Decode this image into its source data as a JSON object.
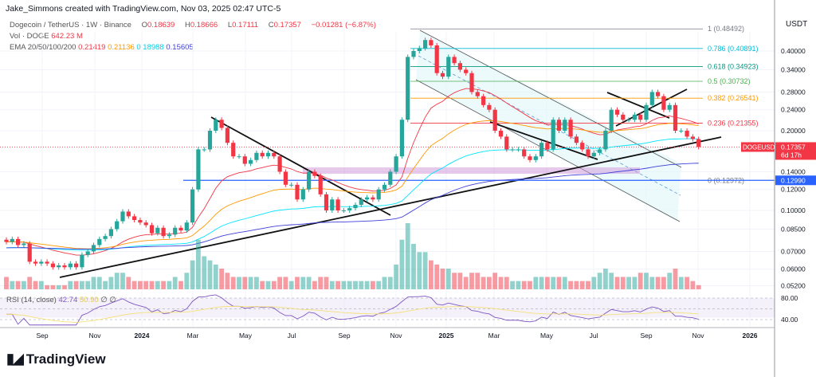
{
  "credit": "Jake_Simmons created with TradingView.com, Nov 03, 2025 02:47 UTC-5",
  "legend": {
    "symbol": "Dogecoin / TetherUS · 1W · Binance",
    "o_label": "O",
    "o": "0.18639",
    "h_label": "H",
    "h": "0.18666",
    "l_label": "L",
    "l": "0.17111",
    "c_label": "C",
    "c": "0.17357",
    "change": "−0.01281 (−6.87%)",
    "vol_label": "Vol · DOGE",
    "vol": "642.23 M",
    "ema_label": "EMA 20/50/100/200",
    "ema": [
      "0.21419",
      "0.21136",
      "0.18988",
      "0.15605"
    ]
  },
  "rsi": {
    "label": "RSI (14, close)",
    "value": "42.74",
    "ma": "50.90",
    "x1": "∅",
    "x2": "∅",
    "ticks": [
      "80.00",
      "40.00"
    ]
  },
  "colors": {
    "up": "#26a69a",
    "down": "#f23645",
    "ema20": "#f23645",
    "ema50": "#ff9800",
    "ema100": "#00e5ff",
    "ema200": "#3f3fd9",
    "rsi": "#7e57c2",
    "rsi_ma": "#f5e17a"
  },
  "logo": "TradingView",
  "chart_data": {
    "type": "candlestick",
    "scale": "log",
    "axis_title": "USDT",
    "y_ticks": [
      "0.40000",
      "0.34000",
      "0.28000",
      "0.24000",
      "0.20000",
      "0.14000",
      "0.12000",
      "0.10000",
      "0.08500",
      "0.07000",
      "0.06000",
      "0.05200"
    ],
    "x_ticks": [
      "Sep",
      "Nov",
      "2024",
      "Mar",
      "May",
      "Jul",
      "Sep",
      "Nov",
      "2025",
      "Mar",
      "May",
      "Jul",
      "Sep",
      "Nov",
      "2026"
    ],
    "last_price": {
      "symbol": "DOGEUSDT",
      "value": "0.17357",
      "countdown": "6d 17h"
    },
    "marked_price": "0.12990",
    "close": [
      0.076,
      0.078,
      0.074,
      0.075,
      0.064,
      0.063,
      0.064,
      0.063,
      0.061,
      0.062,
      0.061,
      0.063,
      0.061,
      0.068,
      0.07,
      0.074,
      0.078,
      0.08,
      0.085,
      0.091,
      0.099,
      0.095,
      0.092,
      0.09,
      0.088,
      0.082,
      0.086,
      0.08,
      0.081,
      0.086,
      0.084,
      0.09,
      0.12,
      0.17,
      0.17,
      0.2,
      0.22,
      0.205,
      0.18,
      0.16,
      0.16,
      0.15,
      0.155,
      0.165,
      0.16,
      0.165,
      0.16,
      0.14,
      0.125,
      0.125,
      0.11,
      0.12,
      0.14,
      0.135,
      0.115,
      0.1,
      0.11,
      0.1,
      0.1,
      0.102,
      0.105,
      0.11,
      0.112,
      0.11,
      0.12,
      0.125,
      0.14,
      0.16,
      0.22,
      0.38,
      0.4,
      0.41,
      0.44,
      0.42,
      0.33,
      0.32,
      0.38,
      0.36,
      0.34,
      0.33,
      0.28,
      0.27,
      0.25,
      0.24,
      0.2,
      0.19,
      0.17,
      0.17,
      0.17,
      0.16,
      0.155,
      0.16,
      0.18,
      0.17,
      0.22,
      0.2,
      0.22,
      0.19,
      0.18,
      0.17,
      0.16,
      0.165,
      0.17,
      0.2,
      0.24,
      0.23,
      0.22,
      0.22,
      0.23,
      0.22,
      0.25,
      0.28,
      0.27,
      0.24,
      0.25,
      0.2,
      0.2,
      0.19,
      0.186,
      0.17357
    ],
    "volume": [
      3,
      2,
      2,
      2,
      3,
      2,
      2,
      1,
      1,
      1,
      1,
      2,
      2,
      2,
      2,
      3,
      3,
      2,
      3,
      4,
      4,
      3,
      2,
      2,
      2,
      2,
      2,
      2,
      2,
      3,
      2,
      4,
      7,
      12,
      8,
      7,
      6,
      5,
      4,
      3,
      3,
      3,
      3,
      3,
      2,
      2,
      2,
      3,
      3,
      2,
      3,
      3,
      3,
      2,
      3,
      3,
      2,
      2,
      2,
      2,
      2,
      2,
      2,
      2,
      2,
      3,
      3,
      6,
      12,
      16,
      11,
      9,
      9,
      7,
      6,
      5,
      5,
      4,
      4,
      3,
      4,
      4,
      3,
      3,
      4,
      3,
      3,
      2,
      2,
      2,
      2,
      3,
      3,
      3,
      3,
      3,
      3,
      2,
      2,
      2,
      2,
      3,
      4,
      5,
      4,
      3,
      3,
      3,
      3,
      4,
      4,
      3,
      3,
      3,
      4,
      5,
      3,
      3,
      2,
      1
    ],
    "fib": [
      {
        "ratio": "1",
        "price": "0.48492",
        "color": "#787b86"
      },
      {
        "ratio": "0.786",
        "price": "0.40891",
        "color": "#00bcd4"
      },
      {
        "ratio": "0.618",
        "price": "0.34923",
        "color": "#089981"
      },
      {
        "ratio": "0.5",
        "price": "0.30732",
        "color": "#4caf50"
      },
      {
        "ratio": "0.382",
        "price": "0.26541",
        "color": "#ff9800"
      },
      {
        "ratio": "0.236",
        "price": "0.21355",
        "color": "#f23645"
      },
      {
        "ratio": "0",
        "price": "0.12972",
        "color": "#787b86"
      }
    ]
  }
}
